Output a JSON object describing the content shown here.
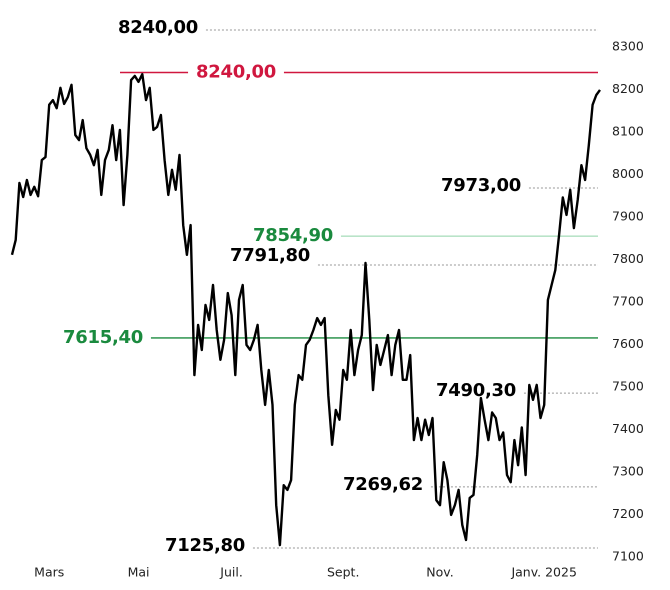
{
  "chart_data": {
    "type": "line",
    "series": [
      {
        "color": "#000000",
        "values": [
          7811,
          7846,
          7980,
          7947,
          7987,
          7952,
          7971,
          7949,
          8034,
          8041,
          8164,
          8175,
          8156,
          8204,
          8166,
          8182,
          8211,
          8093,
          8081,
          8128,
          8062,
          8046,
          8022,
          8058,
          7952,
          8034,
          8058,
          8116,
          8034,
          8105,
          7928,
          8046,
          8222,
          8232,
          8218,
          8236,
          8175,
          8204,
          8105,
          8112,
          8140,
          8034,
          7952,
          8011,
          7964,
          8046,
          7881,
          7811,
          7881,
          7528,
          7646,
          7587,
          7693,
          7658,
          7740,
          7634,
          7564,
          7611,
          7721,
          7669,
          7528,
          7705,
          7740,
          7599,
          7587,
          7611,
          7646,
          7540,
          7458,
          7540,
          7458,
          7222,
          7128,
          7269,
          7258,
          7281,
          7458,
          7528,
          7517,
          7599,
          7611,
          7634,
          7662,
          7646,
          7662,
          7481,
          7364,
          7446,
          7423,
          7540,
          7517,
          7634,
          7528,
          7587,
          7622,
          7792,
          7658,
          7493,
          7599,
          7552,
          7587,
          7622,
          7528,
          7599,
          7634,
          7517,
          7517,
          7575,
          7375,
          7427,
          7375,
          7423,
          7387,
          7427,
          7234,
          7222,
          7323,
          7281,
          7199,
          7222,
          7258,
          7175,
          7140,
          7239,
          7246,
          7340,
          7474,
          7423,
          7375,
          7440,
          7427,
          7375,
          7393,
          7293,
          7276,
          7375,
          7316,
          7405,
          7293,
          7505,
          7470,
          7505,
          7427,
          7458,
          7705,
          7740,
          7775,
          7858,
          7946,
          7905,
          7964,
          7874,
          7940,
          8022,
          7987,
          8069,
          8164,
          8187,
          8199
        ]
      }
    ],
    "xlim": [
      0,
      158
    ],
    "xticks": [
      {
        "value": 10,
        "label": "Mars"
      },
      {
        "value": 34,
        "label": "Mai"
      },
      {
        "value": 59,
        "label": "Juil."
      },
      {
        "value": 89,
        "label": "Sept."
      },
      {
        "value": 115,
        "label": "Nov."
      },
      {
        "value": 143,
        "label": "Janv. 2025"
      }
    ],
    "ylim": [
      7100,
      8300
    ],
    "yticks": [
      7100,
      7200,
      7300,
      7400,
      7500,
      7600,
      7700,
      7800,
      7900,
      8000,
      8100,
      8200,
      8300
    ],
    "annotations": [
      {
        "label": "8240,00",
        "value": 8240,
        "color": "#000000"
      },
      {
        "label": "8240,00",
        "value": 8240,
        "color": "#d0173f"
      },
      {
        "label": "7973,00",
        "value": 7973,
        "color": "#000000"
      },
      {
        "label": "7854,90",
        "value": 7854.9,
        "color": "#1a8a3e"
      },
      {
        "label": "7791,80",
        "value": 7791.8,
        "color": "#000000"
      },
      {
        "label": "7615,40",
        "value": 7615.4,
        "color": "#1a8a3e"
      },
      {
        "label": "7490,30",
        "value": 7490.3,
        "color": "#000000"
      },
      {
        "label": "7269,62",
        "value": 7269.62,
        "color": "#000000"
      },
      {
        "label": "7125,80",
        "value": 7125.8,
        "color": "#000000"
      }
    ]
  }
}
